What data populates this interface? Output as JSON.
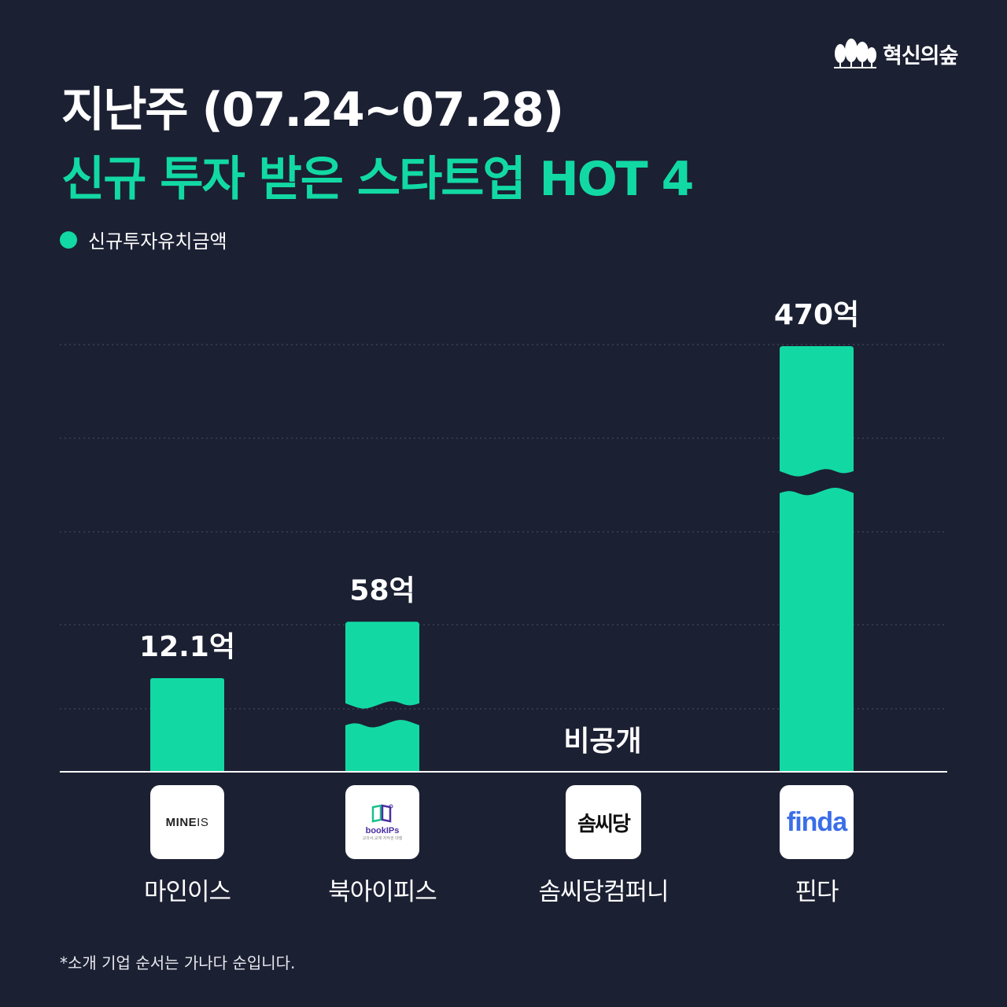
{
  "brand": {
    "name": "혁신의숲",
    "icon": "forest-trees-icon"
  },
  "title": {
    "line1": "지난주 (07.24~07.28)",
    "line2": "신규 투자 받은 스타트업 HOT 4"
  },
  "legend": {
    "label": "신규투자유치금액",
    "color": "#12d9a4"
  },
  "chart_data": {
    "type": "bar",
    "categories": [
      "마인이스",
      "북아이피스",
      "솜씨당컴퍼니",
      "핀다"
    ],
    "series": [
      {
        "name": "신규투자유치금액",
        "values": [
          12.1,
          58,
          null,
          470
        ],
        "color": "#12d9a4"
      }
    ],
    "data_labels": [
      "12.1억",
      "58억",
      "비공개",
      "470억"
    ],
    "axis_breaks": [
      false,
      true,
      false,
      true
    ],
    "grid": true,
    "legend_position": "top-left"
  },
  "logos": {
    "mineis": {
      "text_bold": "MINE",
      "text_light": "IS"
    },
    "bookips": {
      "name": "bookIPs",
      "tagline": "교과서,교재 저작권 대행"
    },
    "somssi": {
      "text": "솜씨당"
    },
    "finda": {
      "text": "finda"
    }
  },
  "footnote": "*소개 기업 순서는 가나다 순입니다."
}
